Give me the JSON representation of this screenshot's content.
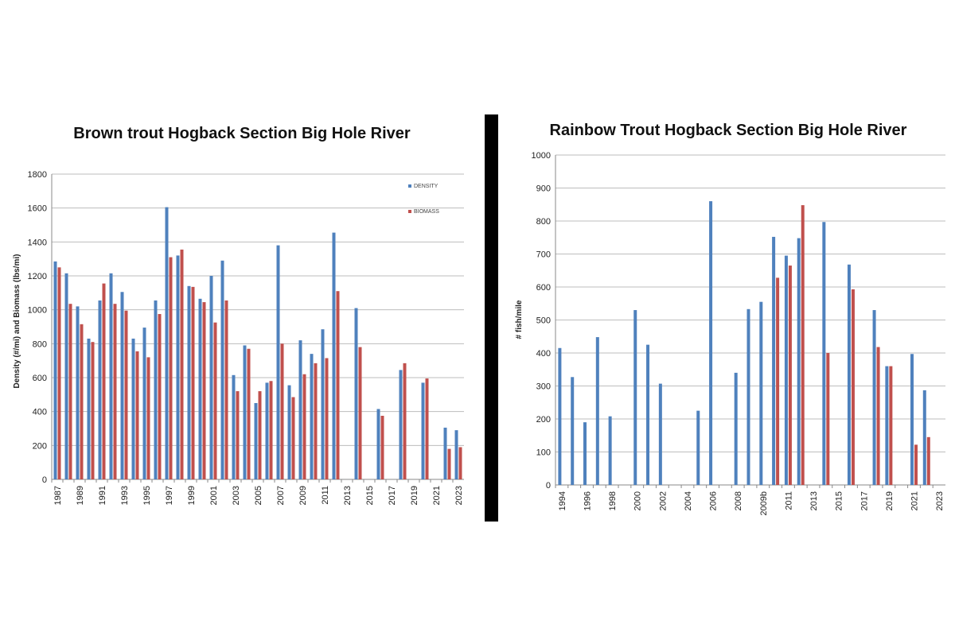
{
  "chart_data": [
    {
      "type": "bar",
      "title": "Brown trout Hogback Section Big Hole River",
      "ylabel": "Density (#/mi) and Biomass (lbs/mi)",
      "ylim": [
        0,
        1800
      ],
      "yticks": [
        0,
        200,
        400,
        600,
        800,
        1000,
        1200,
        1400,
        1600,
        1800
      ],
      "grid": true,
      "legend_position": "top-right",
      "categories": [
        "1987",
        "1988",
        "1989",
        "1990",
        "1991",
        "1992",
        "1993",
        "1994",
        "1995",
        "1996",
        "1997",
        "1998",
        "1999",
        "2000",
        "2001",
        "2002",
        "2003",
        "2004",
        "2005",
        "2006",
        "2007",
        "2008",
        "2009",
        "2010",
        "2011",
        "2012",
        "2013",
        "2014",
        "2015",
        "2016",
        "2017",
        "2018",
        "2019",
        "2020",
        "2021",
        "2022",
        "2023"
      ],
      "xtick_labels": [
        "1987",
        "",
        "1989",
        "",
        "1991",
        "",
        "1993",
        "",
        "1995",
        "",
        "1997",
        "",
        "1999",
        "",
        "2001",
        "",
        "2003",
        "",
        "2005",
        "",
        "2007",
        "",
        "2009",
        "",
        "2011",
        "",
        "2013",
        "",
        "2015",
        "",
        "2017",
        "",
        "2019",
        "",
        "2021",
        "",
        "2023"
      ],
      "series": [
        {
          "name": "DENSITY",
          "color": "#4f81bd",
          "values": [
            1285,
            1215,
            1020,
            830,
            1055,
            1215,
            1105,
            830,
            895,
            1055,
            1605,
            1320,
            1140,
            1065,
            1200,
            1290,
            615,
            790,
            450,
            570,
            1380,
            555,
            820,
            740,
            885,
            1455,
            null,
            1010,
            null,
            415,
            null,
            645,
            null,
            570,
            null,
            305,
            290
          ]
        },
        {
          "name": "BIOMASS",
          "color": "#c0504d",
          "values": [
            1250,
            1035,
            915,
            810,
            1155,
            1035,
            995,
            755,
            720,
            975,
            1310,
            1355,
            1135,
            1045,
            925,
            1055,
            520,
            770,
            520,
            580,
            800,
            485,
            620,
            685,
            715,
            1110,
            null,
            780,
            null,
            375,
            null,
            685,
            null,
            595,
            null,
            180,
            190
          ]
        }
      ]
    },
    {
      "type": "bar",
      "title": "Rainbow Trout Hogback Section Big Hole River",
      "ylabel": "# fish/mile",
      "ylim": [
        0,
        1000
      ],
      "yticks": [
        0,
        100,
        200,
        300,
        400,
        500,
        600,
        700,
        800,
        900,
        1000
      ],
      "grid": true,
      "categories": [
        "1994",
        "1995",
        "1996",
        "1997",
        "1998",
        "1999",
        "2000",
        "2001",
        "2002",
        "2003",
        "2004",
        "2005",
        "2006",
        "2007",
        "2008",
        "2009a",
        "2009b",
        "2010",
        "2011",
        "2012",
        "2013",
        "2014",
        "2015",
        "2016",
        "2017",
        "2018",
        "2019",
        "2020",
        "2021",
        "2022",
        "2023"
      ],
      "xtick_labels": [
        "1994",
        "",
        "1996",
        "",
        "1998",
        "",
        "2000",
        "",
        "2002",
        "",
        "2004",
        "",
        "2006",
        "",
        "2008",
        "",
        "2009b",
        "",
        "2011",
        "",
        "2013",
        "",
        "2015",
        "",
        "2017",
        "",
        "2019",
        "",
        "2021",
        "",
        "2023"
      ],
      "series": [
        {
          "color": "#4f81bd",
          "values": [
            415,
            327,
            190,
            448,
            208,
            null,
            530,
            425,
            307,
            null,
            null,
            225,
            860,
            null,
            340,
            533,
            555,
            752,
            695,
            748,
            null,
            797,
            null,
            668,
            null,
            530,
            360,
            null,
            397,
            287,
            null
          ]
        },
        {
          "color": "#c0504d",
          "values": [
            null,
            null,
            null,
            null,
            null,
            null,
            null,
            null,
            null,
            null,
            null,
            null,
            null,
            null,
            null,
            null,
            null,
            628,
            665,
            848,
            null,
            400,
            null,
            593,
            null,
            418,
            360,
            null,
            122,
            145,
            null
          ]
        }
      ]
    }
  ]
}
